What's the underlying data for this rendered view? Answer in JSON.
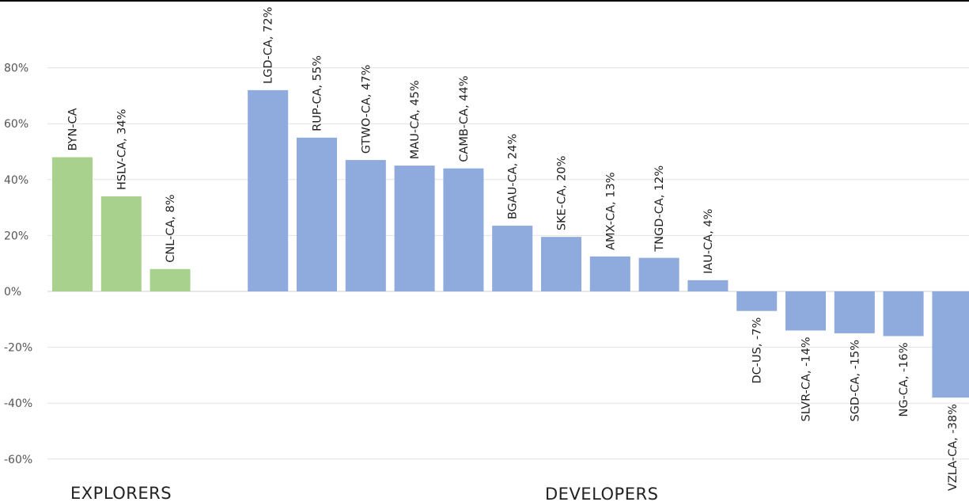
{
  "chart_data": {
    "type": "bar",
    "ylim": [
      -60,
      80
    ],
    "y_ticks": [
      "80%",
      "60%",
      "40%",
      "20%",
      "0%",
      "-20%",
      "-40%",
      "-60%"
    ],
    "grid": true,
    "colors": {
      "explorers": "#a9d18e",
      "developers": "#8faadc"
    },
    "groups": [
      "EXPLORERS",
      "DEVELOPERS"
    ],
    "bars": [
      {
        "label": "BYN-CA",
        "value": 48,
        "group": 0
      },
      {
        "label": "HSLV-CA, 34%",
        "value": 34,
        "group": 0
      },
      {
        "label": "CNL-CA, 8%",
        "value": 8,
        "group": 0
      },
      {
        "label": "LGD-CA, 72%",
        "value": 72,
        "group": 1
      },
      {
        "label": "RUP-CA, 55%",
        "value": 55,
        "group": 1
      },
      {
        "label": "GTWO-CA, 47%",
        "value": 47,
        "group": 1
      },
      {
        "label": "MAU-CA, 45%",
        "value": 45,
        "group": 1
      },
      {
        "label": "CAMB-CA, 44%",
        "value": 44,
        "group": 1
      },
      {
        "label": "BGAU-CA, 24%",
        "value": 23.5,
        "group": 1
      },
      {
        "label": "SKE-CA, 20%",
        "value": 19.5,
        "group": 1
      },
      {
        "label": "AMX-CA, 13%",
        "value": 12.5,
        "group": 1
      },
      {
        "label": "TNGD-CA, 12%",
        "value": 12,
        "group": 1
      },
      {
        "label": "IAU-CA, 4%",
        "value": 4,
        "group": 1
      },
      {
        "label": "DC-US, -7%",
        "value": -7,
        "group": 1
      },
      {
        "label": "SLVR-CA, -14%",
        "value": -14,
        "group": 1
      },
      {
        "label": "SGD-CA, -15%",
        "value": -15,
        "group": 1
      },
      {
        "label": "NG-CA, -16%",
        "value": -16,
        "group": 1
      },
      {
        "label": "VZLA-CA, -38%",
        "value": -38,
        "group": 1
      }
    ]
  }
}
